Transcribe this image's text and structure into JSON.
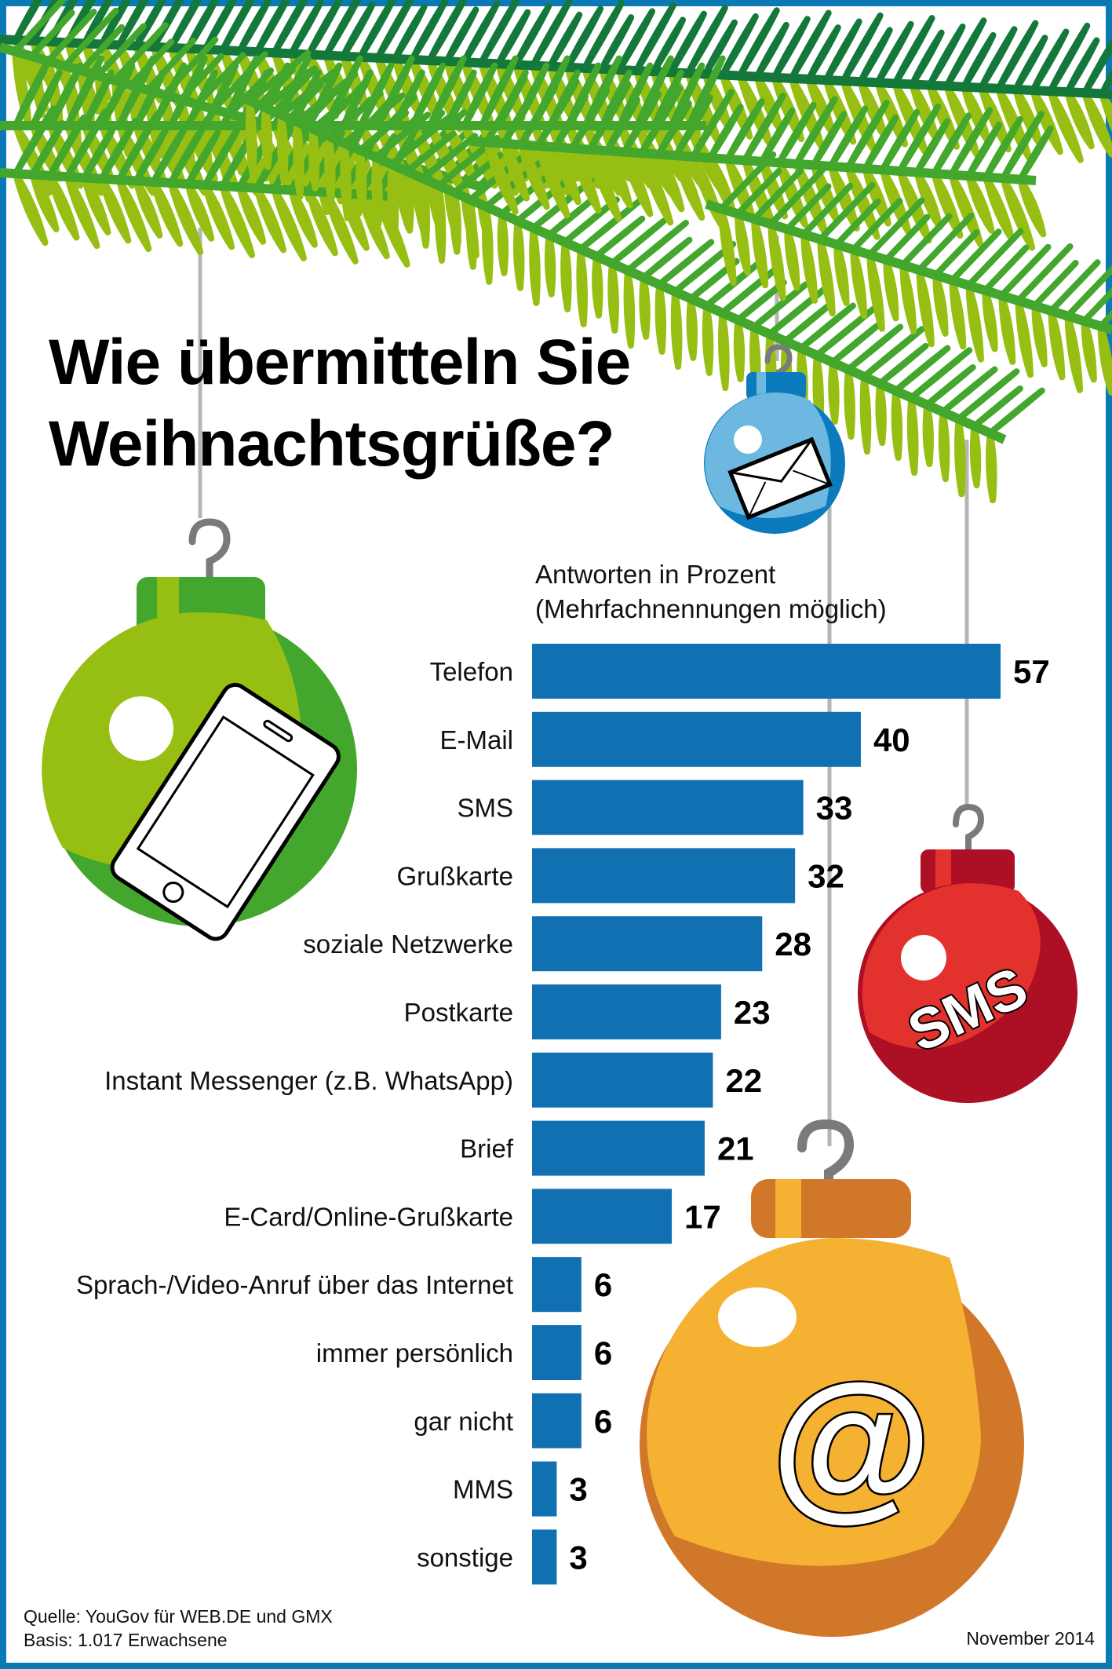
{
  "title_line1": "Wie übermitteln Sie",
  "title_line2": "Weihnachtsgrüße?",
  "subtitle_line1": "Antworten in Prozent",
  "subtitle_line2": "(Mehrfachnennungen möglich)",
  "ornaments": {
    "sms_text": "SMS",
    "at_text": "@"
  },
  "footer": {
    "source": "Quelle: YouGov für WEB.DE und GMX",
    "basis": "Basis: 1.017 Erwachsene",
    "date": "November 2014"
  },
  "colors": {
    "frame": "#0b79b6",
    "bar": "#1170b2",
    "green_light": "#97bf13",
    "green_dark": "#43a62d",
    "blue_light": "#6cb8e0",
    "blue_dark": "#0b7bbd",
    "red_light": "#e3312d",
    "red_dark": "#ad0f25",
    "orange_light": "#f5b132",
    "orange_dark": "#d0772a",
    "needle_light": "#97bf13",
    "needle_mid": "#43a62d",
    "needle_dark": "#14783a"
  },
  "chart_data": {
    "type": "bar",
    "orientation": "horizontal",
    "title": "Wie übermitteln Sie Weihnachtsgrüße?",
    "subtitle": "Antworten in Prozent (Mehrfachnennungen möglich)",
    "xlabel": "",
    "ylabel": "",
    "unit": "%",
    "categories": [
      "Telefon",
      "E-Mail",
      "SMS",
      "Grußkarte",
      "soziale Netzwerke",
      "Postkarte",
      "Instant Messenger (z.B. WhatsApp)",
      "Brief",
      "E-Card/Online-Grußkarte",
      "Sprach-/Video-Anruf über das Internet",
      "immer persönlich",
      "gar nicht",
      "MMS",
      "sonstige"
    ],
    "values": [
      57,
      40,
      33,
      32,
      28,
      23,
      22,
      21,
      17,
      6,
      6,
      6,
      3,
      3
    ],
    "xlim": [
      0,
      57
    ],
    "grid": false,
    "legend": "none",
    "source": "Quelle: YouGov für WEB.DE und GMX",
    "note": "Basis: 1.017 Erwachsene",
    "date": "November 2014"
  }
}
